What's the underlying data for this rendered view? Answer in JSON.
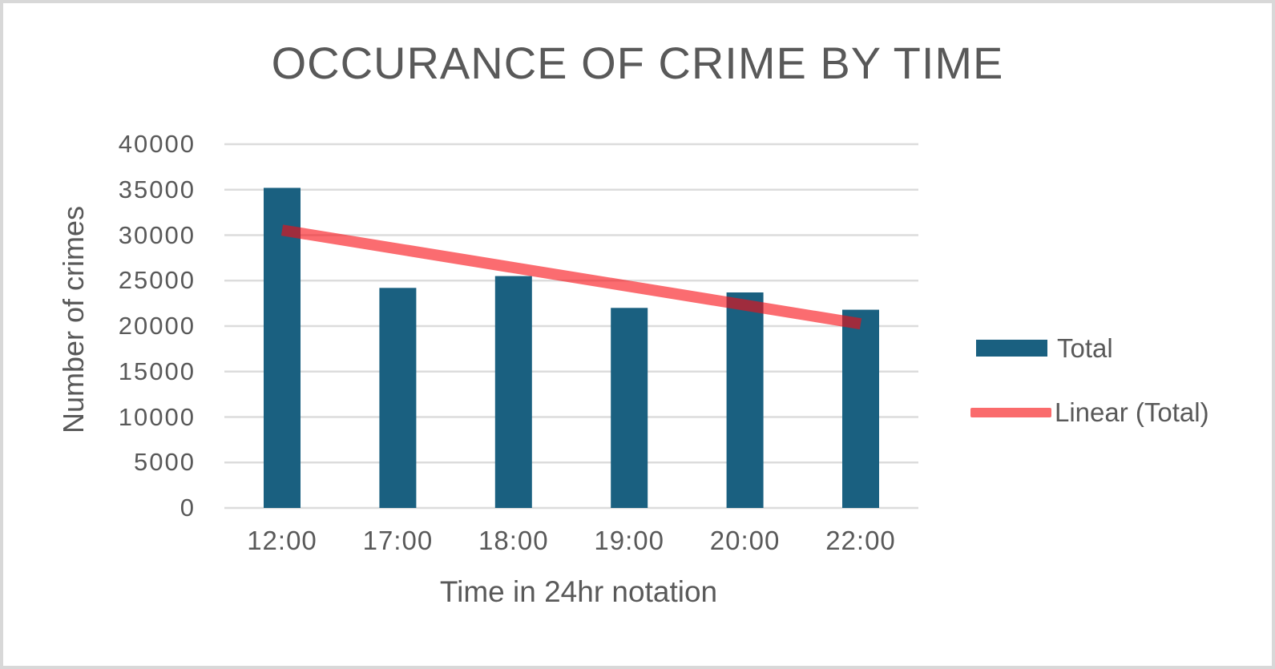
{
  "window": {
    "background": "#ffffff",
    "border_color": "#d8d8d8",
    "text_color": "#595959"
  },
  "chart_data": {
    "type": "bar",
    "title": "OCCURANCE OF CRIME BY TIME",
    "xlabel": "Time in 24hr notation",
    "ylabel": "Number of crimes",
    "categories": [
      "12:00",
      "17:00",
      "18:00",
      "19:00",
      "20:00",
      "22:00"
    ],
    "series": [
      {
        "name": "Total",
        "kind": "bar",
        "color": "#1A6080",
        "values": [
          35200,
          24200,
          25500,
          22000,
          23700,
          21800
        ]
      },
      {
        "name": "Linear (Total)",
        "kind": "trendline",
        "color": "#FA6B6C",
        "line_rgba": "rgba(248,10,16,0.6)",
        "endpoints": [
          30550,
          20250
        ]
      }
    ],
    "ylim": [
      0,
      40000
    ],
    "ytick_step": 5000,
    "yticks": [
      0,
      5000,
      10000,
      15000,
      20000,
      25000,
      30000,
      35000,
      40000
    ],
    "grid": true,
    "gridline_color": "#dcdcdc",
    "legend_position": "right"
  }
}
